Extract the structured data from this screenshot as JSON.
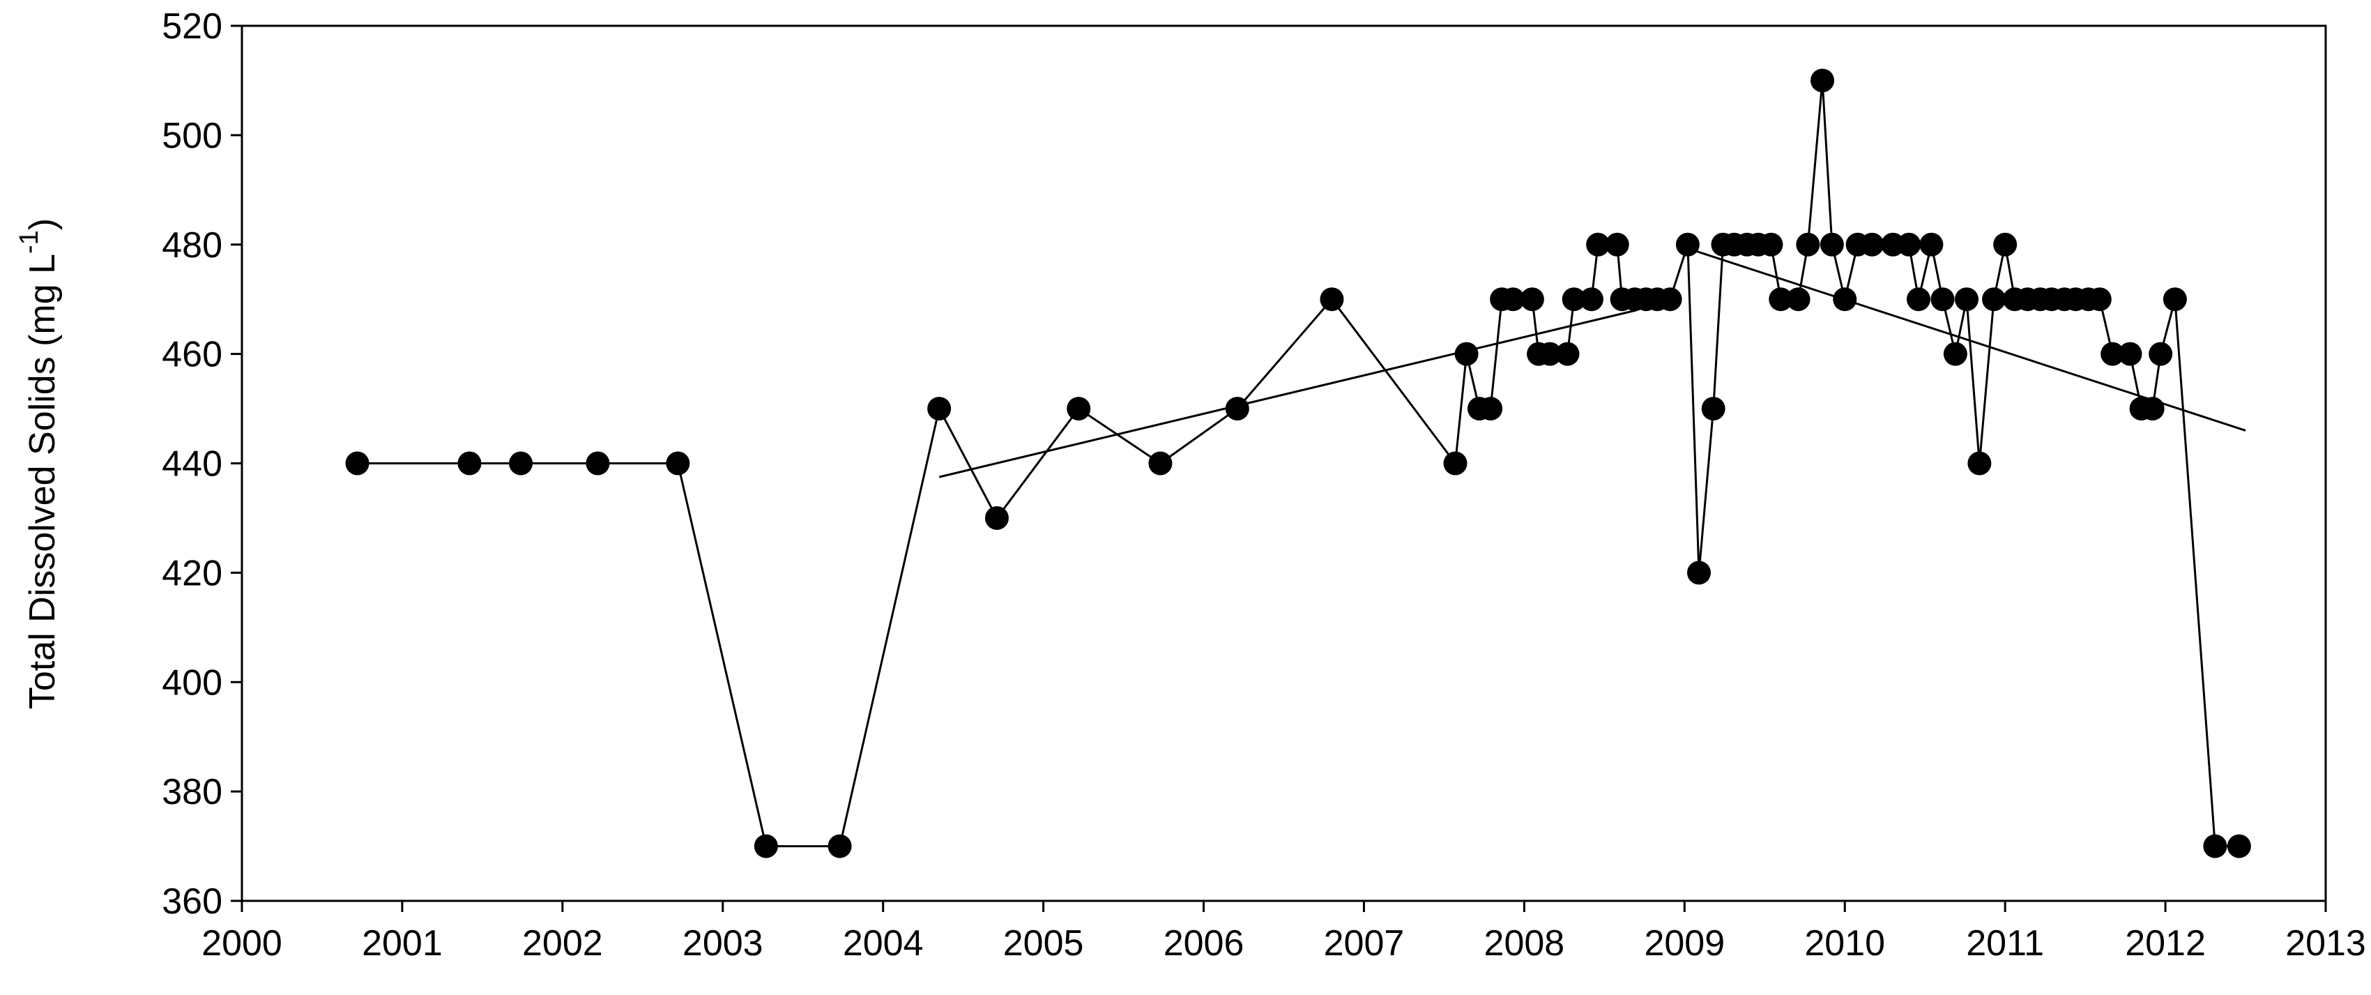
{
  "chart_data": {
    "type": "line",
    "ylabel": "Total Dissolved Solids (mg L",
    "ylabel_sup": "-1",
    "ylabel_end": ")",
    "color": "#000000",
    "x": [
      2000.72,
      2001.42,
      2001.74,
      2002.22,
      2002.72,
      2003.27,
      2003.73,
      2004.35,
      2004.71,
      2005.22,
      2005.73,
      2006.21,
      2006.8,
      2007.57,
      2007.64,
      2007.72,
      2007.79,
      2007.86,
      2007.93,
      2008.05,
      2008.09,
      2008.16,
      2008.27,
      2008.31,
      2008.42,
      2008.46,
      2008.58,
      2008.61,
      2008.69,
      2008.76,
      2008.83,
      2008.91,
      2009.02,
      2009.09,
      2009.18,
      2009.24,
      2009.31,
      2009.39,
      2009.46,
      2009.54,
      2009.6,
      2009.71,
      2009.77,
      2009.86,
      2009.92,
      2010.0,
      2010.08,
      2010.17,
      2010.3,
      2010.4,
      2010.46,
      2010.54,
      2010.61,
      2010.69,
      2010.76,
      2010.84,
      2010.93,
      2011.0,
      2011.06,
      2011.14,
      2011.22,
      2011.29,
      2011.37,
      2011.44,
      2011.52,
      2011.59,
      2011.67,
      2011.78,
      2011.85,
      2011.92,
      2011.97,
      2012.06,
      2012.31,
      2012.46
    ],
    "values": [
      440,
      440,
      440,
      440,
      440,
      370,
      370,
      450,
      430,
      450,
      440,
      450,
      470,
      440,
      460,
      450,
      450,
      470,
      470,
      470,
      460,
      460,
      460,
      470,
      470,
      480,
      480,
      470,
      470,
      470,
      470,
      470,
      480,
      420,
      450,
      480,
      480,
      480,
      480,
      480,
      470,
      470,
      480,
      510,
      480,
      470,
      480,
      480,
      480,
      480,
      470,
      480,
      470,
      460,
      470,
      440,
      470,
      480,
      470,
      470,
      470,
      470,
      470,
      470,
      470,
      470,
      460,
      460,
      450,
      450,
      460,
      470,
      370,
      370
    ],
    "trend_lines": [
      {
        "x": [
          2004.35,
          2008.7
        ],
        "values": [
          437.5,
          468
        ]
      },
      {
        "x": [
          2009.05,
          2012.5
        ],
        "values": [
          479,
          446
        ]
      }
    ],
    "xlim": [
      2000,
      2013
    ],
    "xticks": [
      2000,
      2001,
      2002,
      2003,
      2004,
      2005,
      2006,
      2007,
      2008,
      2009,
      2010,
      2011,
      2012,
      2013
    ],
    "ylim": [
      360,
      520
    ],
    "yticks": [
      360,
      380,
      400,
      420,
      440,
      460,
      480,
      500,
      520
    ]
  }
}
